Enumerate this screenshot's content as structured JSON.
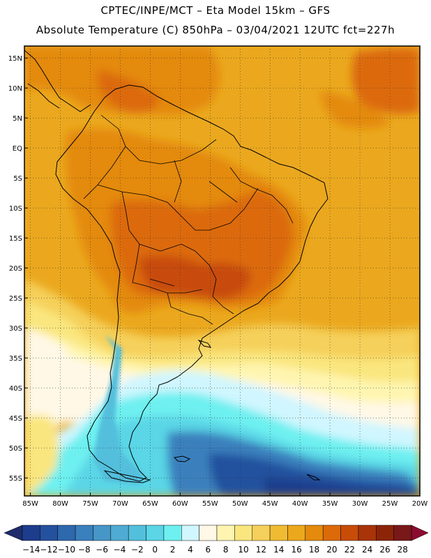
{
  "header": {
    "line1": "CPTEC/INPE/MCT –  Eta Model 15km – GFS",
    "line2": "Absolute Temperature (C) 850hPa – 03/04/2021 12UTC fct=227h"
  },
  "map": {
    "lat_labels": [
      "15N",
      "10N",
      "5N",
      "EQ",
      "5S",
      "10S",
      "15S",
      "20S",
      "25S",
      "30S",
      "35S",
      "40S",
      "45S",
      "50S",
      "55S"
    ],
    "lon_labels": [
      "85W",
      "80W",
      "75W",
      "70W",
      "65W",
      "60W",
      "55W",
      "50W",
      "45W",
      "40W",
      "35W",
      "30W",
      "25W",
      "20W"
    ],
    "lat_values": [
      15,
      10,
      5,
      0,
      -5,
      -10,
      -15,
      -20,
      -25,
      -30,
      -35,
      -40,
      -45,
      -50,
      -55
    ],
    "lon_values": [
      -85,
      -80,
      -75,
      -70,
      -65,
      -60,
      -55,
      -50,
      -45,
      -40,
      -35,
      -30,
      -25,
      -20
    ],
    "lon_range": [
      -86,
      -20
    ],
    "lat_range": [
      -58,
      17
    ]
  },
  "colorbar": {
    "labels": [
      "-14",
      "-12",
      "-10",
      "-8",
      "-6",
      "-4",
      "-2",
      "0",
      "2",
      "4",
      "6",
      "8",
      "10",
      "12",
      "14",
      "16",
      "18",
      "20",
      "22",
      "24",
      "26",
      "28"
    ],
    "colors": [
      "#1e3c8c",
      "#24519e",
      "#2e68ad",
      "#3a80bd",
      "#4696c8",
      "#4fabd3",
      "#52bfdc",
      "#5ad6e6",
      "#6ef0f0",
      "#d0f6ff",
      "#fff8e6",
      "#fff5b0",
      "#fae67e",
      "#f5d05a",
      "#f0bb32",
      "#eca81c",
      "#e48a0c",
      "#dc6a08",
      "#c84c08",
      "#a83408",
      "#8c2408",
      "#781818"
    ],
    "under_color": "#1e2c6c",
    "over_color": "#8c0c30"
  }
}
